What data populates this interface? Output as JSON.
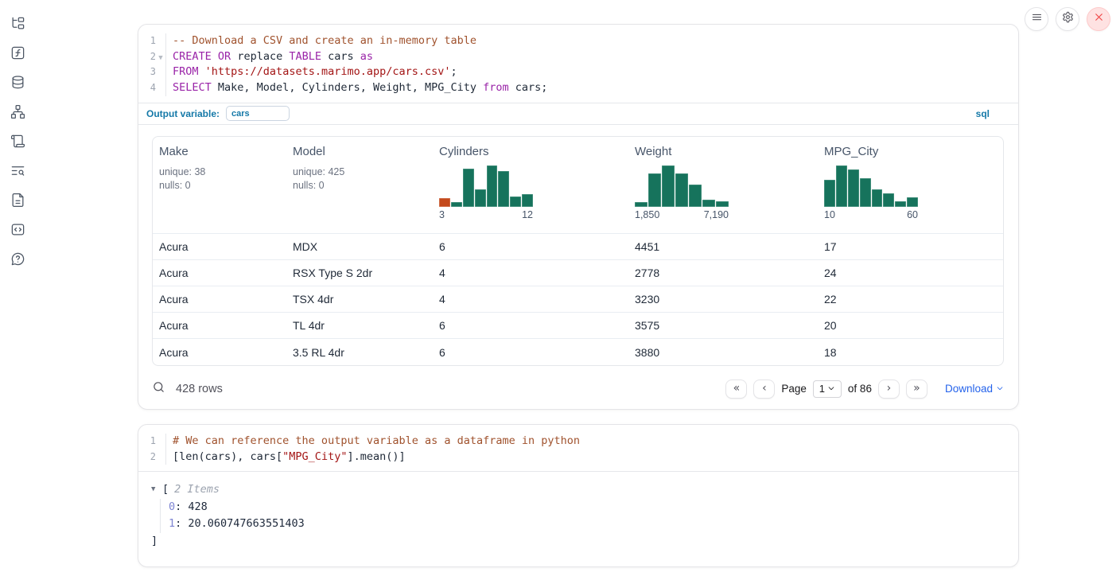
{
  "colors": {
    "hist_green": "#16735c",
    "hist_orange": "#c44a1d",
    "accent_blue": "#1579a8",
    "link_blue": "#2563eb",
    "keyword": "#9a24a8",
    "comment": "#a0522d",
    "string": "#a31515"
  },
  "sidebar": {
    "items": [
      {
        "icon": "file-tree-icon"
      },
      {
        "icon": "function-square-icon"
      },
      {
        "icon": "database-icon"
      },
      {
        "icon": "dependency-graph-icon"
      },
      {
        "icon": "scroll-icon"
      },
      {
        "icon": "list-search-icon"
      },
      {
        "icon": "document-icon"
      },
      {
        "icon": "code-snippet-icon"
      },
      {
        "icon": "help-icon"
      }
    ]
  },
  "topbar": {
    "buttons": [
      {
        "icon": "menu-icon"
      },
      {
        "icon": "settings-icon"
      },
      {
        "icon": "close-icon"
      }
    ]
  },
  "sql_cell": {
    "lines": [
      {
        "num": "1",
        "fold": false,
        "tokens": [
          [
            "comment",
            "-- Download a CSV and create an in-memory table"
          ]
        ]
      },
      {
        "num": "2",
        "fold": true,
        "tokens": [
          [
            "keyword",
            "CREATE"
          ],
          [
            "plain",
            " "
          ],
          [
            "keyword",
            "OR"
          ],
          [
            "plain",
            " replace "
          ],
          [
            "keyword",
            "TABLE"
          ],
          [
            "plain",
            " cars "
          ],
          [
            "keyword",
            "as"
          ]
        ]
      },
      {
        "num": "3",
        "fold": false,
        "tokens": [
          [
            "keyword",
            "FROM"
          ],
          [
            "plain",
            " "
          ],
          [
            "string",
            "'https://datasets.marimo.app/cars.csv'"
          ],
          [
            "plain",
            ";"
          ]
        ]
      },
      {
        "num": "4",
        "fold": false,
        "tokens": [
          [
            "keyword",
            "SELECT"
          ],
          [
            "plain",
            " Make, Model, Cylinders, Weight, MPG_City "
          ],
          [
            "keyword",
            "from"
          ],
          [
            "plain",
            " cars;"
          ]
        ]
      }
    ],
    "output_variable_label": "Output variable:",
    "output_variable_value": "cars",
    "language_badge": "sql"
  },
  "table": {
    "columns": [
      {
        "name": "Make",
        "summary": [
          "unique: 38",
          "nulls: 0"
        ]
      },
      {
        "name": "Model",
        "summary": [
          "unique: 425",
          "nulls: 0"
        ]
      },
      {
        "name": "Cylinders",
        "histogram": {
          "min_label": "3",
          "max_label": "12",
          "bars": [
            {
              "h": 0.22,
              "c": "orange"
            },
            {
              "h": 0.12
            },
            {
              "h": 0.93
            },
            {
              "h": 0.42
            },
            {
              "h": 1.0
            },
            {
              "h": 0.86
            },
            {
              "h": 0.25
            },
            {
              "h": 0.3
            }
          ]
        }
      },
      {
        "name": "Weight",
        "histogram": {
          "min_label": "1,850",
          "max_label": "7,190",
          "bars": [
            {
              "h": 0.12
            },
            {
              "h": 0.8
            },
            {
              "h": 1.0
            },
            {
              "h": 0.8
            },
            {
              "h": 0.54
            },
            {
              "h": 0.18
            },
            {
              "h": 0.13
            }
          ]
        }
      },
      {
        "name": "MPG_City",
        "histogram": {
          "min_label": "10",
          "max_label": "60",
          "bars": [
            {
              "h": 0.66
            },
            {
              "h": 1.0
            },
            {
              "h": 0.9
            },
            {
              "h": 0.7
            },
            {
              "h": 0.43
            },
            {
              "h": 0.32
            },
            {
              "h": 0.13
            },
            {
              "h": 0.24
            }
          ]
        }
      }
    ],
    "rows": [
      [
        "Acura",
        "MDX",
        "6",
        "4451",
        "17"
      ],
      [
        "Acura",
        "RSX Type S 2dr",
        "4",
        "2778",
        "24"
      ],
      [
        "Acura",
        "TSX 4dr",
        "4",
        "3230",
        "22"
      ],
      [
        "Acura",
        "TL 4dr",
        "6",
        "3575",
        "20"
      ],
      [
        "Acura",
        "3.5 RL 4dr",
        "6",
        "3880",
        "18"
      ]
    ],
    "footer": {
      "row_count": "428 rows",
      "first": "«",
      "prev": "‹",
      "next": "›",
      "last": "»",
      "page_label": "Page",
      "page_value": "1",
      "of_label": "of 86",
      "download_label": "Download"
    }
  },
  "python_cell": {
    "lines": [
      {
        "num": "1",
        "fold": false,
        "tokens": [
          [
            "comment",
            "# We can reference the output variable as a dataframe in python"
          ]
        ]
      },
      {
        "num": "2",
        "fold": false,
        "tokens": [
          [
            "plain",
            "[len(cars), cars["
          ],
          [
            "string",
            "\"MPG_City\""
          ],
          [
            "plain",
            "].mean()]"
          ]
        ]
      }
    ],
    "output": {
      "bracket_open": "[",
      "items_label": "2 Items",
      "entries": [
        [
          "0",
          "428"
        ],
        [
          "1",
          "20.060747663551403"
        ]
      ],
      "bracket_close": "]"
    }
  }
}
